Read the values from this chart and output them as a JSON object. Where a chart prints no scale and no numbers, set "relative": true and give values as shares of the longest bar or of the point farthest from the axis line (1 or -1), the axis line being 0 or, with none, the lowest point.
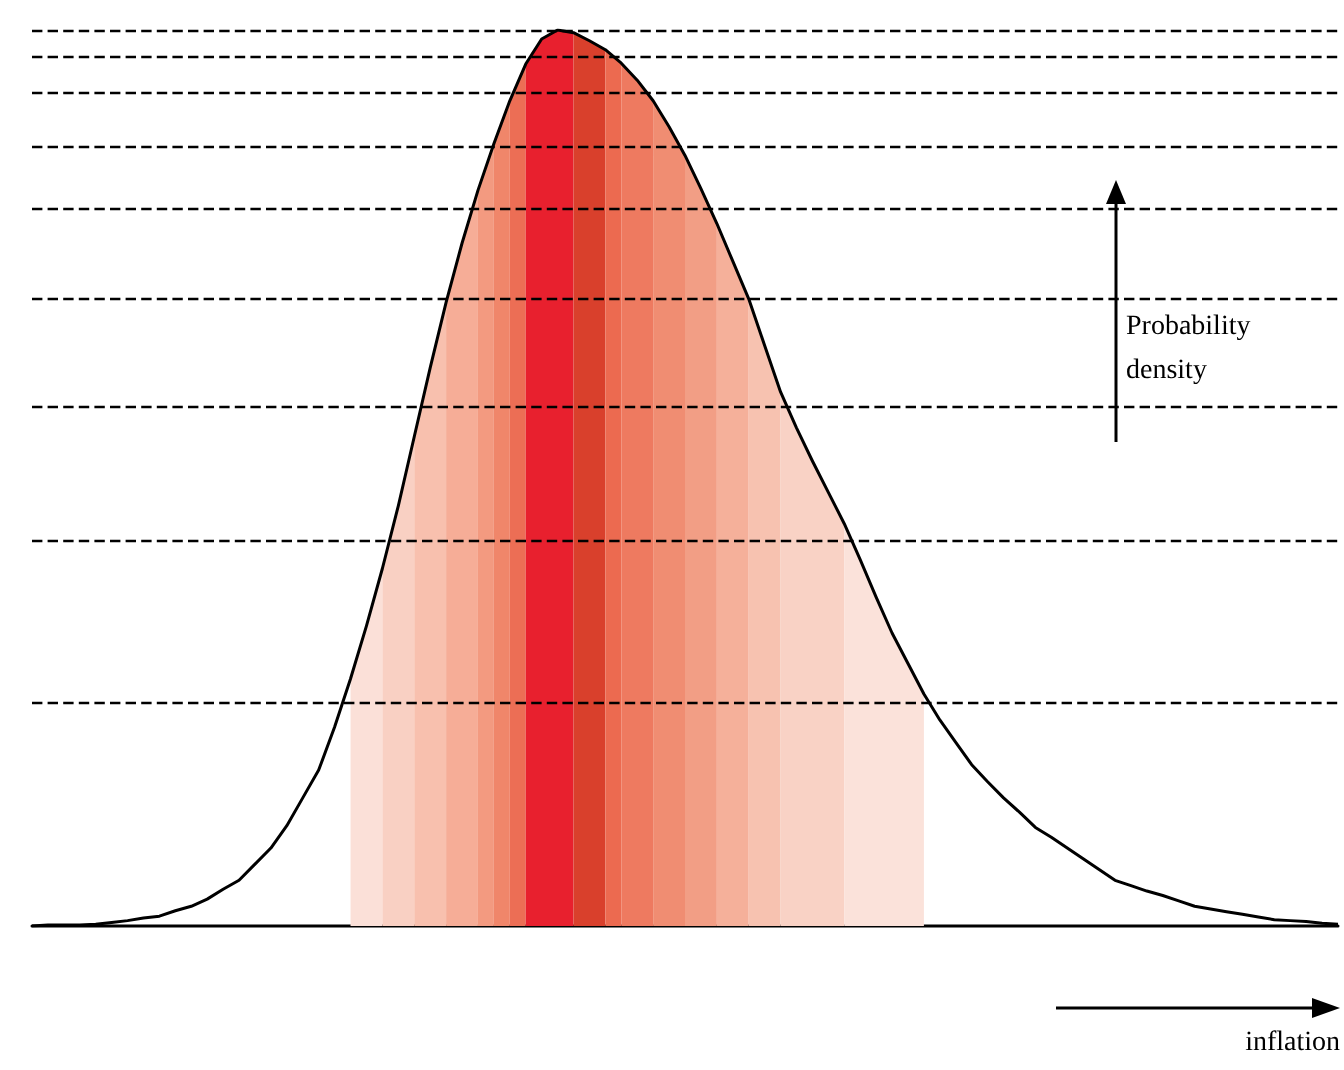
{
  "chart_data": {
    "type": "area",
    "relative": true,
    "categories": [
      null,
      null,
      null,
      null,
      null,
      null,
      null,
      null,
      null,
      null,
      null,
      null,
      null,
      null,
      null,
      null,
      null,
      null,
      null,
      null,
      null,
      null,
      null,
      null,
      null,
      null,
      null,
      null,
      null,
      null,
      null,
      null,
      null,
      null,
      null,
      null,
      null,
      null,
      null,
      null,
      null,
      null,
      null,
      null,
      null,
      null,
      null,
      null,
      null,
      null,
      null,
      null,
      null,
      null,
      null,
      null,
      null,
      null,
      null,
      null,
      null,
      null,
      null,
      null,
      null,
      null,
      null,
      null,
      null,
      null,
      null,
      null,
      null,
      null,
      null,
      null,
      null,
      null,
      null,
      null,
      null,
      null,
      null
    ],
    "annotations": [
      "Probability density",
      "inflation"
    ],
    "ref_lines": [
      {
        "axis": "y",
        "value": 0.996,
        "line_style": "dashed",
        "color": "#000000"
      },
      {
        "axis": "y",
        "value": 0.971,
        "line_style": "dashed",
        "color": "#000000"
      },
      {
        "axis": "y",
        "value": 0.933,
        "line_style": "dashed",
        "color": "#000000"
      },
      {
        "axis": "y",
        "value": 0.873,
        "line_style": "dashed",
        "color": "#000000"
      },
      {
        "axis": "y",
        "value": 0.8,
        "line_style": "dashed",
        "color": "#000000"
      },
      {
        "axis": "y",
        "value": 0.699,
        "line_style": "dashed",
        "color": "#000000"
      },
      {
        "axis": "y",
        "value": 0.583,
        "line_style": "dashed",
        "color": "#000000"
      },
      {
        "axis": "y",
        "value": 0.431,
        "line_style": "dashed",
        "color": "#000000"
      },
      {
        "axis": "y",
        "value": 0.246,
        "line_style": "dashed",
        "color": "#000000"
      }
    ],
    "series": [
      {
        "color": "#fbe0d8",
        "values": [
          null,
          null,
          null,
          null,
          null,
          null,
          null,
          null,
          null,
          null,
          null,
          null,
          null,
          null,
          null,
          null,
          null,
          null,
          null,
          null,
          0.276,
          0.335,
          0.399,
          null,
          null,
          null,
          null,
          null,
          null,
          null,
          null,
          null,
          null,
          null,
          null,
          null,
          null,
          null,
          null,
          null,
          null,
          null,
          null,
          null,
          null,
          null,
          null,
          null,
          null,
          null,
          null,
          null,
          null,
          null,
          null,
          null,
          null,
          null,
          null,
          null,
          null,
          null,
          null,
          null,
          null,
          null,
          null,
          null,
          null,
          null,
          null,
          null,
          null,
          null,
          null,
          null,
          null,
          null,
          null,
          null,
          null,
          null,
          null
        ]
      },
      {
        "color": "#f9d0c3",
        "values": [
          null,
          null,
          null,
          null,
          null,
          null,
          null,
          null,
          null,
          null,
          null,
          null,
          null,
          null,
          null,
          null,
          null,
          null,
          null,
          null,
          null,
          null,
          0.399,
          0.469,
          0.546,
          null,
          null,
          null,
          null,
          null,
          null,
          null,
          null,
          null,
          null,
          null,
          null,
          null,
          null,
          null,
          null,
          null,
          null,
          null,
          null,
          null,
          null,
          null,
          null,
          null,
          null,
          null,
          null,
          null,
          null,
          null,
          null,
          null,
          null,
          null,
          null,
          null,
          null,
          null,
          null,
          null,
          null,
          null,
          null,
          null,
          null,
          null,
          null,
          null,
          null,
          null,
          null,
          null,
          null,
          null,
          null,
          null,
          null
        ]
      },
      {
        "color": "#f8c0ae",
        "values": [
          null,
          null,
          null,
          null,
          null,
          null,
          null,
          null,
          null,
          null,
          null,
          null,
          null,
          null,
          null,
          null,
          null,
          null,
          null,
          null,
          null,
          null,
          null,
          null,
          0.546,
          0.623,
          0.696,
          null,
          null,
          null,
          null,
          null,
          null,
          null,
          null,
          null,
          null,
          null,
          null,
          null,
          null,
          null,
          null,
          null,
          null,
          null,
          null,
          null,
          null,
          null,
          null,
          null,
          null,
          null,
          null,
          null,
          null,
          null,
          null,
          null,
          null,
          null,
          null,
          null,
          null,
          null,
          null,
          null,
          null,
          null,
          null,
          null,
          null,
          null,
          null,
          null,
          null,
          null,
          null,
          null,
          null,
          null,
          null
        ]
      },
      {
        "color": "#f6ad97",
        "values": [
          null,
          null,
          null,
          null,
          null,
          null,
          null,
          null,
          null,
          null,
          null,
          null,
          null,
          null,
          null,
          null,
          null,
          null,
          null,
          null,
          null,
          null,
          null,
          null,
          null,
          null,
          0.696,
          0.762,
          0.821,
          null,
          null,
          null,
          null,
          null,
          null,
          null,
          null,
          null,
          null,
          null,
          null,
          null,
          null,
          null,
          null,
          null,
          null,
          null,
          null,
          null,
          null,
          null,
          null,
          null,
          null,
          null,
          null,
          null,
          null,
          null,
          null,
          null,
          null,
          null,
          null,
          null,
          null,
          null,
          null,
          null,
          null,
          null,
          null,
          null,
          null,
          null,
          null,
          null,
          null,
          null,
          null,
          null,
          null
        ]
      },
      {
        "color": "#f39a80",
        "values": [
          null,
          null,
          null,
          null,
          null,
          null,
          null,
          null,
          null,
          null,
          null,
          null,
          null,
          null,
          null,
          null,
          null,
          null,
          null,
          null,
          null,
          null,
          null,
          null,
          null,
          null,
          null,
          null,
          0.821,
          0.873,
          null,
          null,
          null,
          null,
          null,
          null,
          null,
          null,
          null,
          null,
          null,
          null,
          null,
          null,
          null,
          null,
          null,
          null,
          null,
          null,
          null,
          null,
          null,
          null,
          null,
          null,
          null,
          null,
          null,
          null,
          null,
          null,
          null,
          null,
          null,
          null,
          null,
          null,
          null,
          null,
          null,
          null,
          null,
          null,
          null,
          null,
          null,
          null,
          null,
          null,
          null,
          null,
          null
        ]
      },
      {
        "color": "#f0866a",
        "values": [
          null,
          null,
          null,
          null,
          null,
          null,
          null,
          null,
          null,
          null,
          null,
          null,
          null,
          null,
          null,
          null,
          null,
          null,
          null,
          null,
          null,
          null,
          null,
          null,
          null,
          null,
          null,
          null,
          null,
          0.873,
          0.921,
          null,
          null,
          null,
          null,
          null,
          null,
          null,
          null,
          null,
          null,
          null,
          null,
          null,
          null,
          null,
          null,
          null,
          null,
          null,
          null,
          null,
          null,
          null,
          null,
          null,
          null,
          null,
          null,
          null,
          null,
          null,
          null,
          null,
          null,
          null,
          null,
          null,
          null,
          null,
          null,
          null,
          null,
          null,
          null,
          null,
          null,
          null,
          null,
          null,
          null,
          null,
          null
        ]
      },
      {
        "color": "#ec6e55",
        "values": [
          null,
          null,
          null,
          null,
          null,
          null,
          null,
          null,
          null,
          null,
          null,
          null,
          null,
          null,
          null,
          null,
          null,
          null,
          null,
          null,
          null,
          null,
          null,
          null,
          null,
          null,
          null,
          null,
          null,
          null,
          0.921,
          0.962,
          null,
          null,
          null,
          null,
          null,
          null,
          null,
          null,
          null,
          null,
          null,
          null,
          null,
          null,
          null,
          null,
          null,
          null,
          null,
          null,
          null,
          null,
          null,
          null,
          null,
          null,
          null,
          null,
          null,
          null,
          null,
          null,
          null,
          null,
          null,
          null,
          null,
          null,
          null,
          null,
          null,
          null,
          null,
          null,
          null,
          null,
          null,
          null,
          null,
          null,
          null
        ]
      },
      {
        "color": "#e8202e",
        "values": [
          null,
          null,
          null,
          null,
          null,
          null,
          null,
          null,
          null,
          null,
          null,
          null,
          null,
          null,
          null,
          null,
          null,
          null,
          null,
          null,
          null,
          null,
          null,
          null,
          null,
          null,
          null,
          null,
          null,
          null,
          null,
          0.962,
          0.99,
          1.0,
          0.997,
          null,
          null,
          null,
          null,
          null,
          null,
          null,
          null,
          null,
          null,
          null,
          null,
          null,
          null,
          null,
          null,
          null,
          null,
          null,
          null,
          null,
          null,
          null,
          null,
          null,
          null,
          null,
          null,
          null,
          null,
          null,
          null,
          null,
          null,
          null,
          null,
          null,
          null,
          null,
          null,
          null,
          null,
          null,
          null,
          null,
          null,
          null,
          null
        ]
      },
      {
        "color": "#d9402c",
        "values": [
          null,
          null,
          null,
          null,
          null,
          null,
          null,
          null,
          null,
          null,
          null,
          null,
          null,
          null,
          null,
          null,
          null,
          null,
          null,
          null,
          null,
          null,
          null,
          null,
          null,
          null,
          null,
          null,
          null,
          null,
          null,
          null,
          null,
          null,
          0.997,
          0.988,
          0.978,
          null,
          null,
          null,
          null,
          null,
          null,
          null,
          null,
          null,
          null,
          null,
          null,
          null,
          null,
          null,
          null,
          null,
          null,
          null,
          null,
          null,
          null,
          null,
          null,
          null,
          null,
          null,
          null,
          null,
          null,
          null,
          null,
          null,
          null,
          null,
          null,
          null,
          null,
          null,
          null,
          null,
          null,
          null,
          null,
          null,
          null
        ]
      },
      {
        "color": "#ec6a50",
        "values": [
          null,
          null,
          null,
          null,
          null,
          null,
          null,
          null,
          null,
          null,
          null,
          null,
          null,
          null,
          null,
          null,
          null,
          null,
          null,
          null,
          null,
          null,
          null,
          null,
          null,
          null,
          null,
          null,
          null,
          null,
          null,
          null,
          null,
          null,
          null,
          null,
          0.978,
          0.963,
          null,
          null,
          null,
          null,
          null,
          null,
          null,
          null,
          null,
          null,
          null,
          null,
          null,
          null,
          null,
          null,
          null,
          null,
          null,
          null,
          null,
          null,
          null,
          null,
          null,
          null,
          null,
          null,
          null,
          null,
          null,
          null,
          null,
          null,
          null,
          null,
          null,
          null,
          null,
          null,
          null,
          null,
          null,
          null,
          null
        ]
      },
      {
        "color": "#ee7a60",
        "values": [
          null,
          null,
          null,
          null,
          null,
          null,
          null,
          null,
          null,
          null,
          null,
          null,
          null,
          null,
          null,
          null,
          null,
          null,
          null,
          null,
          null,
          null,
          null,
          null,
          null,
          null,
          null,
          null,
          null,
          null,
          null,
          null,
          null,
          null,
          null,
          null,
          null,
          0.963,
          0.944,
          0.921,
          null,
          null,
          null,
          null,
          null,
          null,
          null,
          null,
          null,
          null,
          null,
          null,
          null,
          null,
          null,
          null,
          null,
          null,
          null,
          null,
          null,
          null,
          null,
          null,
          null,
          null,
          null,
          null,
          null,
          null,
          null,
          null,
          null,
          null,
          null,
          null,
          null,
          null,
          null,
          null,
          null,
          null,
          null
        ]
      },
      {
        "color": "#f08d72",
        "values": [
          null,
          null,
          null,
          null,
          null,
          null,
          null,
          null,
          null,
          null,
          null,
          null,
          null,
          null,
          null,
          null,
          null,
          null,
          null,
          null,
          null,
          null,
          null,
          null,
          null,
          null,
          null,
          null,
          null,
          null,
          null,
          null,
          null,
          null,
          null,
          null,
          null,
          null,
          null,
          0.921,
          0.892,
          0.86,
          null,
          null,
          null,
          null,
          null,
          null,
          null,
          null,
          null,
          null,
          null,
          null,
          null,
          null,
          null,
          null,
          null,
          null,
          null,
          null,
          null,
          null,
          null,
          null,
          null,
          null,
          null,
          null,
          null,
          null,
          null,
          null,
          null,
          null,
          null,
          null,
          null,
          null,
          null,
          null,
          null
        ]
      },
      {
        "color": "#f29e85",
        "values": [
          null,
          null,
          null,
          null,
          null,
          null,
          null,
          null,
          null,
          null,
          null,
          null,
          null,
          null,
          null,
          null,
          null,
          null,
          null,
          null,
          null,
          null,
          null,
          null,
          null,
          null,
          null,
          null,
          null,
          null,
          null,
          null,
          null,
          null,
          null,
          null,
          null,
          null,
          null,
          null,
          null,
          0.86,
          0.823,
          0.784,
          null,
          null,
          null,
          null,
          null,
          null,
          null,
          null,
          null,
          null,
          null,
          null,
          null,
          null,
          null,
          null,
          null,
          null,
          null,
          null,
          null,
          null,
          null,
          null,
          null,
          null,
          null,
          null,
          null,
          null,
          null,
          null,
          null,
          null,
          null,
          null,
          null,
          null,
          null
        ]
      },
      {
        "color": "#f5b09a",
        "values": [
          null,
          null,
          null,
          null,
          null,
          null,
          null,
          null,
          null,
          null,
          null,
          null,
          null,
          null,
          null,
          null,
          null,
          null,
          null,
          null,
          null,
          null,
          null,
          null,
          null,
          null,
          null,
          null,
          null,
          null,
          null,
          null,
          null,
          null,
          null,
          null,
          null,
          null,
          null,
          null,
          null,
          null,
          null,
          0.784,
          0.742,
          0.7,
          null,
          null,
          null,
          null,
          null,
          null,
          null,
          null,
          null,
          null,
          null,
          null,
          null,
          null,
          null,
          null,
          null,
          null,
          null,
          null,
          null,
          null,
          null,
          null,
          null,
          null,
          null,
          null,
          null,
          null,
          null,
          null,
          null,
          null,
          null,
          null,
          null
        ]
      },
      {
        "color": "#f7c2b0",
        "values": [
          null,
          null,
          null,
          null,
          null,
          null,
          null,
          null,
          null,
          null,
          null,
          null,
          null,
          null,
          null,
          null,
          null,
          null,
          null,
          null,
          null,
          null,
          null,
          null,
          null,
          null,
          null,
          null,
          null,
          null,
          null,
          null,
          null,
          null,
          null,
          null,
          null,
          null,
          null,
          null,
          null,
          null,
          null,
          null,
          null,
          0.7,
          0.648,
          0.596,
          null,
          null,
          null,
          null,
          null,
          null,
          null,
          null,
          null,
          null,
          null,
          null,
          null,
          null,
          null,
          null,
          null,
          null,
          null,
          null,
          null,
          null,
          null,
          null,
          null,
          null,
          null,
          null,
          null,
          null,
          null,
          null,
          null,
          null,
          null
        ]
      },
      {
        "color": "#f9d2c5",
        "values": [
          null,
          null,
          null,
          null,
          null,
          null,
          null,
          null,
          null,
          null,
          null,
          null,
          null,
          null,
          null,
          null,
          null,
          null,
          null,
          null,
          null,
          null,
          null,
          null,
          null,
          null,
          null,
          null,
          null,
          null,
          null,
          null,
          null,
          null,
          null,
          null,
          null,
          null,
          null,
          null,
          null,
          null,
          null,
          null,
          null,
          null,
          null,
          0.596,
          0.556,
          0.519,
          0.484,
          0.449,
          null,
          null,
          null,
          null,
          null,
          null,
          null,
          null,
          null,
          null,
          null,
          null,
          null,
          null,
          null,
          null,
          null,
          null,
          null,
          null,
          null,
          null,
          null,
          null,
          null,
          null,
          null,
          null,
          null,
          null,
          null
        ]
      },
      {
        "color": "#fbe2da",
        "values": [
          null,
          null,
          null,
          null,
          null,
          null,
          null,
          null,
          null,
          null,
          null,
          null,
          null,
          null,
          null,
          null,
          null,
          null,
          null,
          null,
          null,
          null,
          null,
          null,
          null,
          null,
          null,
          null,
          null,
          null,
          null,
          null,
          null,
          null,
          null,
          null,
          null,
          null,
          null,
          null,
          null,
          null,
          null,
          null,
          null,
          null,
          null,
          null,
          null,
          null,
          null,
          0.449,
          0.409,
          0.367,
          0.327,
          0.293,
          0.259,
          null,
          null,
          null,
          null,
          null,
          null,
          null,
          null,
          null,
          null,
          null,
          null,
          null,
          null,
          null,
          null,
          null,
          null,
          null,
          null,
          null,
          null,
          null,
          null,
          null,
          null
        ]
      },
      {
        "type": "line",
        "color": "#000000",
        "values": [
          0,
          0.001,
          0.001,
          0.001,
          0.002,
          0.004,
          0.006,
          0.009,
          0.011,
          0.017,
          0.022,
          0.03,
          0.041,
          0.051,
          0.069,
          0.087,
          0.112,
          0.143,
          0.174,
          0.222,
          0.276,
          0.335,
          0.399,
          0.469,
          0.546,
          0.623,
          0.696,
          0.762,
          0.821,
          0.873,
          0.921,
          0.962,
          0.99,
          1.0,
          0.997,
          0.988,
          0.978,
          0.963,
          0.944,
          0.921,
          0.892,
          0.86,
          0.823,
          0.784,
          0.742,
          0.7,
          0.648,
          0.596,
          0.556,
          0.519,
          0.484,
          0.449,
          0.409,
          0.367,
          0.327,
          0.293,
          0.259,
          0.23,
          0.205,
          0.18,
          0.161,
          0.143,
          0.127,
          0.11,
          0.099,
          0.087,
          0.075,
          0.063,
          0.051,
          0.045,
          0.039,
          0.034,
          0.028,
          0.022,
          0.019,
          0.016,
          0.013,
          0.01,
          0.007,
          0.006,
          0.005,
          0.003,
          0.002
        ]
      }
    ]
  }
}
